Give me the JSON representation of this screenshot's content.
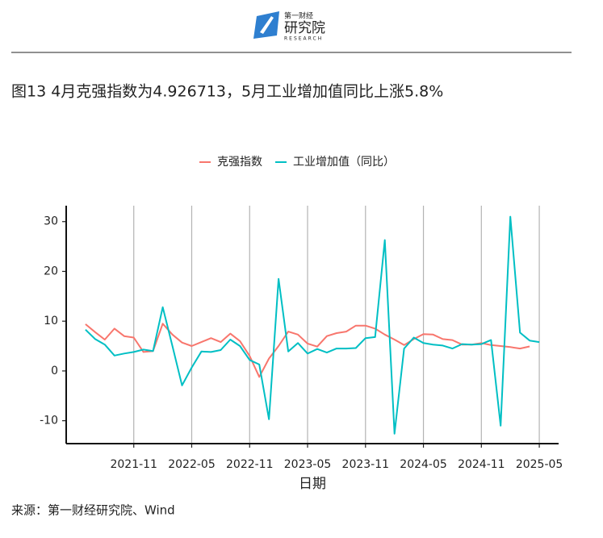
{
  "header": {
    "logo_small": "第一财经",
    "logo_main": "研究院",
    "logo_sub": "RESEARCH"
  },
  "chart_data": {
    "type": "line",
    "title": "图13 4月克强指数为4.926713，5月工业增加值同比上涨5.8%",
    "xlabel": "日期",
    "source": "来源：第一财经研究院、Wind",
    "legend": "top",
    "grid": "x",
    "x": [
      "2021-06",
      "2021-07",
      "2021-08",
      "2021-09",
      "2021-10",
      "2021-11",
      "2021-12",
      "2022-01",
      "2022-02",
      "2022-03",
      "2022-04",
      "2022-05",
      "2022-06",
      "2022-07",
      "2022-08",
      "2022-09",
      "2022-10",
      "2022-11",
      "2022-12",
      "2023-01",
      "2023-02",
      "2023-03",
      "2023-04",
      "2023-05",
      "2023-06",
      "2023-07",
      "2023-08",
      "2023-09",
      "2023-10",
      "2023-11",
      "2023-12",
      "2024-01",
      "2024-02",
      "2024-03",
      "2024-04",
      "2024-05",
      "2024-06",
      "2024-07",
      "2024-08",
      "2024-09",
      "2024-10",
      "2024-11",
      "2024-12",
      "2025-01",
      "2025-02",
      "2025-03",
      "2025-04",
      "2025-05"
    ],
    "series": [
      {
        "name": "克强指数",
        "color": "#F8766D",
        "values": [
          9.4,
          7.8,
          6.3,
          8.5,
          7.0,
          6.7,
          3.8,
          4.0,
          9.5,
          7.3,
          5.7,
          5.0,
          5.8,
          6.6,
          5.8,
          7.5,
          6.0,
          3.0,
          -1.2,
          2.5,
          5.0,
          7.9,
          7.3,
          5.5,
          4.9,
          7.0,
          7.6,
          7.9,
          9.1,
          9.1,
          8.5,
          7.3,
          6.3,
          5.2,
          6.4,
          7.4,
          7.3,
          6.4,
          6.2,
          5.3,
          5.3,
          5.6,
          5.2,
          5.0,
          4.8,
          4.5,
          4.93,
          null
        ]
      },
      {
        "name": "工业增加值（同比）",
        "color": "#00BFC4",
        "values": [
          8.3,
          6.4,
          5.3,
          3.1,
          3.5,
          3.8,
          4.3,
          4.0,
          12.8,
          5.0,
          -2.9,
          0.7,
          3.9,
          3.8,
          4.2,
          6.3,
          5.0,
          2.2,
          1.3,
          -9.7,
          18.5,
          3.9,
          5.6,
          3.5,
          4.4,
          3.7,
          4.5,
          4.5,
          4.6,
          6.6,
          6.8,
          26.3,
          -12.6,
          4.5,
          6.7,
          5.6,
          5.3,
          5.1,
          4.5,
          5.4,
          5.3,
          5.4,
          6.2,
          -11.0,
          31.0,
          7.7,
          6.1,
          5.8
        ]
      }
    ],
    "xlim": [
      "2021-04",
      "2025-07"
    ],
    "xticks": [
      "2021-11",
      "2022-05",
      "2022-11",
      "2023-05",
      "2023-11",
      "2024-05",
      "2024-11",
      "2025-05"
    ],
    "ylim": [
      -14.6,
      33.2
    ],
    "yticks": [
      -10,
      0,
      10,
      20,
      30
    ]
  }
}
